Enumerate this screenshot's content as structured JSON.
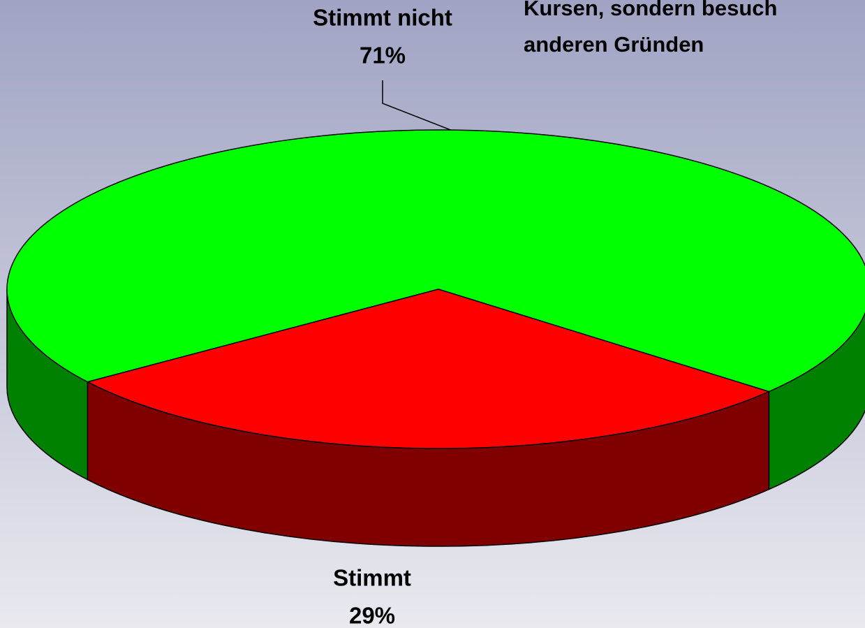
{
  "chart_data": {
    "type": "pie3d",
    "title_lines": [
      "Kursen, sondern besuch",
      "anderen Gründen"
    ],
    "categories": [
      "Stimmt nicht",
      "Stimmt"
    ],
    "values": [
      71,
      29
    ],
    "value_labels": [
      "71%",
      "29%"
    ],
    "colors": [
      "#00ff00",
      "#ff0000"
    ],
    "side_colors": [
      "#008000",
      "#800000"
    ]
  }
}
